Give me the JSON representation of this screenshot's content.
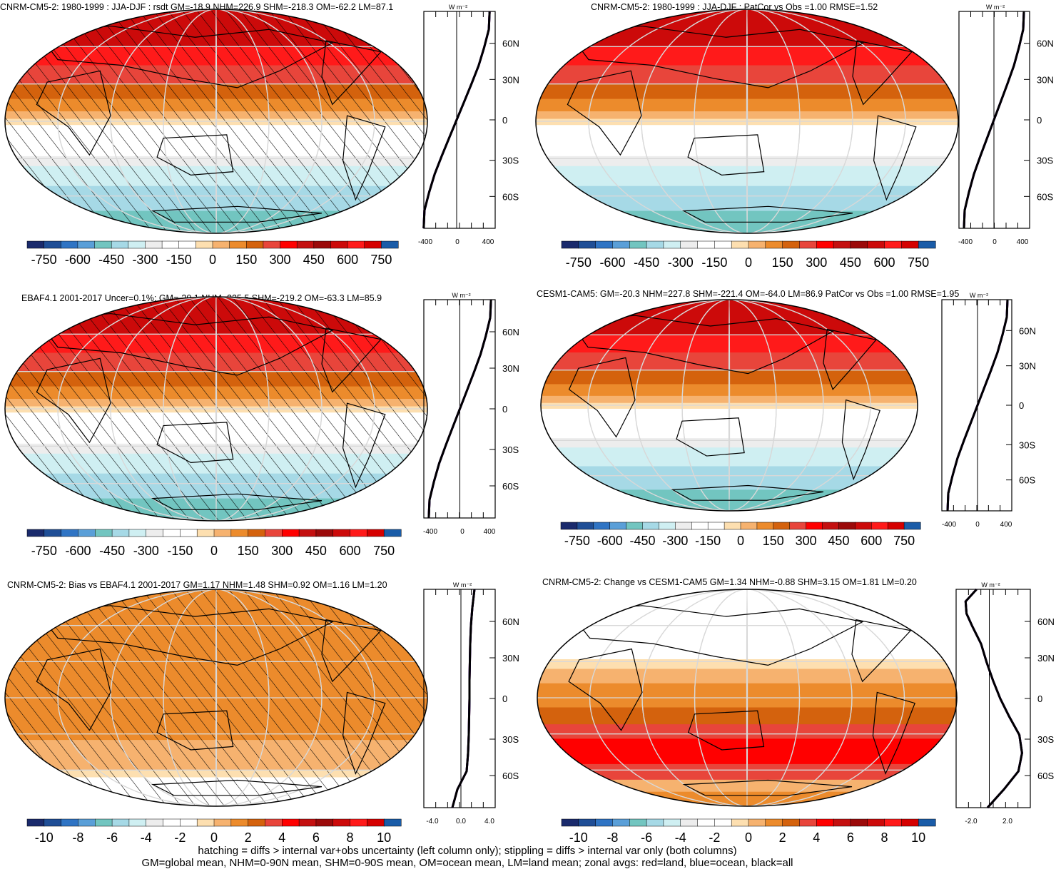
{
  "colors": {
    "diverging_scale": [
      "#1a2a6c",
      "#1f4e96",
      "#2f74c4",
      "#5a9fd8",
      "#72c5c0",
      "#a6d9e6",
      "#cfeff2",
      "#ededed",
      "#ffffff",
      "#fddfb0",
      "#f6b26f",
      "#ec8b2c",
      "#d4620d",
      "#e8453b",
      "#ff0000",
      "#c41010",
      "#9b0a0a",
      "#cc0a0a",
      "#ff1a1a",
      "#1a5ca8"
    ],
    "land_avg": "#d00000",
    "ocean_avg": "#0000cc",
    "all_avg": "#000000",
    "graticule": "#d8d8d8"
  },
  "panels": [
    {
      "title": "CNRM-CM5-2: 1980-1999 : JJA-DJF : rsdt GM=-18.9 NHM=226.9 SHM=-218.3 OM=-62.2 LM=87.1",
      "units": "W m⁻²",
      "colorbar_labels": [
        "-750",
        "-600",
        "-450",
        "-300",
        "-150",
        "0",
        "150",
        "300",
        "450",
        "600",
        "750"
      ],
      "zonal_ticks_x": [
        "-400",
        "0",
        "400"
      ],
      "lat_ticks": [
        "60N",
        "30N",
        "0",
        "30S",
        "60S"
      ],
      "hatched": true,
      "bands": [
        {
          "lat_top": 90,
          "lat_bot": 60,
          "color": "#cc0a0a"
        },
        {
          "lat_top": 60,
          "lat_bot": 45,
          "color": "#ff1a1a"
        },
        {
          "lat_top": 45,
          "lat_bot": 30,
          "color": "#e8453b"
        },
        {
          "lat_top": 30,
          "lat_bot": 18,
          "color": "#d4620d"
        },
        {
          "lat_top": 18,
          "lat_bot": 8,
          "color": "#ec8b2c"
        },
        {
          "lat_top": 8,
          "lat_bot": 2,
          "color": "#f6b26f"
        },
        {
          "lat_top": 2,
          "lat_bot": -3,
          "color": "#fddfb0"
        },
        {
          "lat_top": -3,
          "lat_bot": -28,
          "color": "#ffffff"
        },
        {
          "lat_top": -28,
          "lat_bot": -36,
          "color": "#ededed"
        },
        {
          "lat_top": -36,
          "lat_bot": -52,
          "color": "#cfeff2"
        },
        {
          "lat_top": -52,
          "lat_bot": -72,
          "color": "#a6d9e6"
        },
        {
          "lat_top": -72,
          "lat_bot": -90,
          "color": "#72c5c0"
        }
      ],
      "zonal": {
        "lat": [
          90,
          75,
          60,
          45,
          30,
          15,
          0,
          -15,
          -30,
          -45,
          -60,
          -75,
          -90
        ],
        "value": [
          420,
          410,
          350,
          280,
          190,
          95,
          0,
          -95,
          -190,
          -280,
          -350,
          -410,
          -420
        ]
      }
    },
    {
      "title": "CNRM-CM5-2: 1980-1999 : JJA-DJF : PatCor vs Obs =1.00 RMSE=1.52",
      "units": "W m⁻²",
      "colorbar_labels": [
        "-750",
        "-600",
        "-450",
        "-300",
        "-150",
        "0",
        "150",
        "300",
        "450",
        "600",
        "750"
      ],
      "zonal_ticks_x": [
        "-400",
        "0",
        "400"
      ],
      "lat_ticks": [
        "60N",
        "30N",
        "0",
        "30S",
        "60S"
      ],
      "hatched": false,
      "bands": [
        {
          "lat_top": 90,
          "lat_bot": 60,
          "color": "#cc0a0a"
        },
        {
          "lat_top": 60,
          "lat_bot": 45,
          "color": "#ff1a1a"
        },
        {
          "lat_top": 45,
          "lat_bot": 30,
          "color": "#e8453b"
        },
        {
          "lat_top": 30,
          "lat_bot": 18,
          "color": "#d4620d"
        },
        {
          "lat_top": 18,
          "lat_bot": 8,
          "color": "#ec8b2c"
        },
        {
          "lat_top": 8,
          "lat_bot": 2,
          "color": "#f6b26f"
        },
        {
          "lat_top": 2,
          "lat_bot": -3,
          "color": "#fddfb0"
        },
        {
          "lat_top": -3,
          "lat_bot": -28,
          "color": "#ffffff"
        },
        {
          "lat_top": -28,
          "lat_bot": -36,
          "color": "#ededed"
        },
        {
          "lat_top": -36,
          "lat_bot": -52,
          "color": "#cfeff2"
        },
        {
          "lat_top": -52,
          "lat_bot": -72,
          "color": "#a6d9e6"
        },
        {
          "lat_top": -72,
          "lat_bot": -90,
          "color": "#72c5c0"
        }
      ],
      "zonal": {
        "lat": [
          90,
          75,
          60,
          45,
          30,
          15,
          0,
          -15,
          -30,
          -45,
          -60,
          -75,
          -90
        ],
        "value": [
          420,
          410,
          350,
          280,
          190,
          95,
          0,
          -95,
          -190,
          -280,
          -350,
          -410,
          -420
        ]
      }
    },
    {
      "title": "EBAF4.1 2001-2017 Uncer=0.1%: GM=-20.1 NHM=225.5 SHM=-219.2 OM=-63.3 LM=85.9",
      "units": "W m⁻²",
      "colorbar_labels": [
        "-750",
        "-600",
        "-450",
        "-300",
        "-150",
        "0",
        "150",
        "300",
        "450",
        "600",
        "750"
      ],
      "zonal_ticks_x": [
        "-400",
        "0",
        "400"
      ],
      "lat_ticks": [
        "60N",
        "30N",
        "0",
        "30S",
        "60S"
      ],
      "hatched": true,
      "bands": [
        {
          "lat_top": 90,
          "lat_bot": 60,
          "color": "#cc0a0a"
        },
        {
          "lat_top": 60,
          "lat_bot": 45,
          "color": "#ff1a1a"
        },
        {
          "lat_top": 45,
          "lat_bot": 30,
          "color": "#e8453b"
        },
        {
          "lat_top": 30,
          "lat_bot": 18,
          "color": "#d4620d"
        },
        {
          "lat_top": 18,
          "lat_bot": 8,
          "color": "#ec8b2c"
        },
        {
          "lat_top": 8,
          "lat_bot": 2,
          "color": "#f6b26f"
        },
        {
          "lat_top": 2,
          "lat_bot": -3,
          "color": "#fddfb0"
        },
        {
          "lat_top": -3,
          "lat_bot": -28,
          "color": "#ffffff"
        },
        {
          "lat_top": -28,
          "lat_bot": -36,
          "color": "#ededed"
        },
        {
          "lat_top": -36,
          "lat_bot": -52,
          "color": "#cfeff2"
        },
        {
          "lat_top": -52,
          "lat_bot": -72,
          "color": "#a6d9e6"
        },
        {
          "lat_top": -72,
          "lat_bot": -90,
          "color": "#72c5c0"
        }
      ],
      "zonal": {
        "lat": [
          90,
          75,
          60,
          45,
          30,
          15,
          0,
          -15,
          -30,
          -45,
          -60,
          -75,
          -90
        ],
        "value": [
          420,
          410,
          350,
          280,
          190,
          95,
          0,
          -95,
          -190,
          -280,
          -350,
          -410,
          -420
        ]
      }
    },
    {
      "title": "CESM1-CAM5: GM=-20.3 NHM=227.8 SHM=-221.4 OM=-64.0 LM=86.9 PatCor vs Obs =1.00 RMSE=1.95",
      "units": "W m⁻²",
      "colorbar_labels": [
        "-750",
        "-600",
        "-450",
        "-300",
        "-150",
        "0",
        "150",
        "300",
        "450",
        "600",
        "750"
      ],
      "zonal_ticks_x": [
        "-400",
        "0",
        "400"
      ],
      "lat_ticks": [
        "60N",
        "30N",
        "0",
        "30S",
        "60S"
      ],
      "hatched": false,
      "bands": [
        {
          "lat_top": 90,
          "lat_bot": 60,
          "color": "#cc0a0a"
        },
        {
          "lat_top": 60,
          "lat_bot": 45,
          "color": "#ff1a1a"
        },
        {
          "lat_top": 45,
          "lat_bot": 30,
          "color": "#e8453b"
        },
        {
          "lat_top": 30,
          "lat_bot": 18,
          "color": "#d4620d"
        },
        {
          "lat_top": 18,
          "lat_bot": 8,
          "color": "#ec8b2c"
        },
        {
          "lat_top": 8,
          "lat_bot": 2,
          "color": "#f6b26f"
        },
        {
          "lat_top": 2,
          "lat_bot": -3,
          "color": "#fddfb0"
        },
        {
          "lat_top": -3,
          "lat_bot": -28,
          "color": "#ffffff"
        },
        {
          "lat_top": -28,
          "lat_bot": -36,
          "color": "#ededed"
        },
        {
          "lat_top": -36,
          "lat_bot": -52,
          "color": "#cfeff2"
        },
        {
          "lat_top": -52,
          "lat_bot": -72,
          "color": "#a6d9e6"
        },
        {
          "lat_top": -72,
          "lat_bot": -90,
          "color": "#72c5c0"
        }
      ],
      "zonal": {
        "lat": [
          90,
          75,
          60,
          45,
          30,
          15,
          0,
          -15,
          -30,
          -45,
          -60,
          -75,
          -90
        ],
        "value": [
          420,
          410,
          350,
          280,
          190,
          95,
          0,
          -95,
          -190,
          -280,
          -350,
          -410,
          -420
        ]
      }
    },
    {
      "title": "CNRM-CM5-2: Bias vs EBAF4.1 2001-2017 GM=1.17 NHM=1.48 SHM=0.92 OM=1.16 LM=1.20",
      "units": "W m⁻²",
      "colorbar_labels": [
        "-10",
        "-8",
        "-6",
        "-4",
        "-2",
        "0",
        "2",
        "4",
        "6",
        "8",
        "10"
      ],
      "zonal_ticks_x": [
        "-4.0",
        "0.0",
        "4.0"
      ],
      "lat_ticks": [
        "60N",
        "30N",
        "0",
        "30S",
        "60S"
      ],
      "hatched": true,
      "bands": [
        {
          "lat_top": 90,
          "lat_bot": -35,
          "color": "#ec8b2c"
        },
        {
          "lat_top": -35,
          "lat_bot": -60,
          "color": "#f6b26f"
        },
        {
          "lat_top": -60,
          "lat_bot": -66,
          "color": "#fddfb0"
        },
        {
          "lat_top": -66,
          "lat_bot": -90,
          "color": "#ffffff"
        }
      ],
      "zonal": {
        "lat": [
          90,
          75,
          60,
          45,
          30,
          15,
          0,
          -15,
          -30,
          -45,
          -60,
          -75,
          -90
        ],
        "value": [
          1.9,
          1.6,
          1.4,
          1.3,
          1.25,
          1.2,
          1.2,
          1.15,
          1.1,
          1.0,
          0.8,
          -0.5,
          -1.2
        ]
      }
    },
    {
      "title": "CNRM-CM5-2: Change vs CESM1-CAM5 GM=1.34 NHM=-0.88 SHM=3.15 OM=1.81 LM=0.20",
      "units": "W m⁻²",
      "colorbar_labels": [
        "-10",
        "-8",
        "-6",
        "-4",
        "-2",
        "0",
        "2",
        "4",
        "6",
        "8",
        "10"
      ],
      "zonal_ticks_x": [
        "-2.0",
        "2.0"
      ],
      "lat_ticks": [
        "60N",
        "30N",
        "0",
        "30S",
        "60S"
      ],
      "hatched": false,
      "bands": [
        {
          "lat_top": 90,
          "lat_bot": 32,
          "color": "#ffffff"
        },
        {
          "lat_top": 32,
          "lat_bot": 24,
          "color": "#fddfb0"
        },
        {
          "lat_top": 24,
          "lat_bot": 12,
          "color": "#f6b26f"
        },
        {
          "lat_top": 12,
          "lat_bot": -8,
          "color": "#ec8b2c"
        },
        {
          "lat_top": -8,
          "lat_bot": -22,
          "color": "#d4620d"
        },
        {
          "lat_top": -22,
          "lat_bot": -34,
          "color": "#e8453b"
        },
        {
          "lat_top": -34,
          "lat_bot": -55,
          "color": "#ff0000"
        },
        {
          "lat_top": -55,
          "lat_bot": -68,
          "color": "#e8453b"
        },
        {
          "lat_top": -68,
          "lat_bot": -78,
          "color": "#f6b26f"
        },
        {
          "lat_top": -78,
          "lat_bot": -90,
          "color": "#ec8b2c"
        }
      ],
      "zonal": {
        "lat": [
          90,
          80,
          70,
          60,
          45,
          30,
          15,
          0,
          -15,
          -30,
          -45,
          -60,
          -75,
          -90
        ],
        "value": [
          -1.4,
          -2.6,
          -2.5,
          -1.9,
          -0.9,
          -0.3,
          0.4,
          1.2,
          2.2,
          3.3,
          3.6,
          3.2,
          1.6,
          -0.2
        ]
      }
    }
  ],
  "footnote": {
    "line1": "hatching = diffs > internal var+obs uncertainty (left column only); stippling = diffs > internal var only (both columns)",
    "line2": "GM=global mean, NHM=0-90N mean, SHM=0-90S mean, OM=ocean mean, LM=land mean; zonal avgs: red=land, blue=ocean, black=all"
  }
}
